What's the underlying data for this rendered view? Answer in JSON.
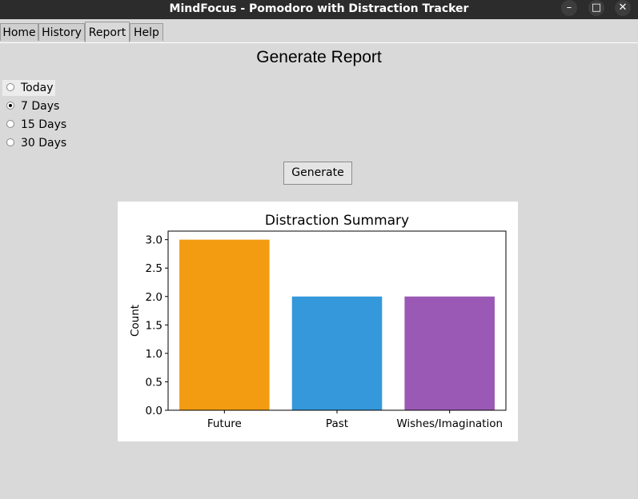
{
  "window": {
    "title": "MindFocus - Pomodoro with Distraction Tracker",
    "minimize_glyph": "–",
    "maximize_glyph": "□",
    "close_glyph": "✕"
  },
  "tabs": [
    {
      "label": "Home"
    },
    {
      "label": "History"
    },
    {
      "label": "Report"
    },
    {
      "label": "Help"
    }
  ],
  "report": {
    "heading": "Generate Report",
    "options": [
      {
        "label": "Today",
        "selected": false
      },
      {
        "label": "7 Days",
        "selected": true
      },
      {
        "label": "15 Days",
        "selected": false
      },
      {
        "label": "30 Days",
        "selected": false
      }
    ],
    "generate_label": "Generate"
  },
  "chart_data": {
    "type": "bar",
    "title": "Distraction Summary",
    "xlabel": "",
    "ylabel": "Count",
    "categories": [
      "Future",
      "Past",
      "Wishes/Imagination"
    ],
    "values": [
      3,
      2,
      2
    ],
    "colors": [
      "#f39c12",
      "#3498db",
      "#9b59b6"
    ],
    "ylim": [
      0,
      3.15
    ],
    "yticks": [
      0,
      0.5,
      1,
      1.5,
      2,
      2.5,
      3
    ],
    "ytick_labels": [
      "0.0",
      "0.5",
      "1.0",
      "1.5",
      "2.0",
      "2.5",
      "3.0"
    ],
    "grid": false,
    "legend": "none"
  }
}
